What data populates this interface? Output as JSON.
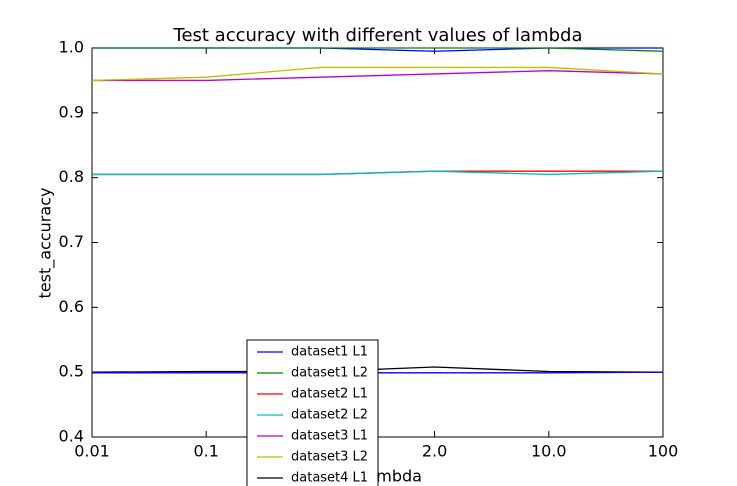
{
  "chart_data": {
    "type": "line",
    "title": "Test accuracy with different values of lambda",
    "x_label": "lambda",
    "y_label": "test_accuracy",
    "categories": [
      "0.01",
      "0.1",
      null,
      "2.0",
      "10.0",
      "100"
    ],
    "ylim": [
      0.4,
      1.0
    ],
    "yticks": [
      {
        "value": 0.4,
        "label": "0.4"
      },
      {
        "value": 0.5,
        "label": "0.5"
      },
      {
        "value": 0.6,
        "label": "0.6"
      },
      {
        "value": 0.7,
        "label": "0.7"
      },
      {
        "value": 0.8,
        "label": "0.8"
      },
      {
        "value": 0.9,
        "label": "0.9"
      },
      {
        "value": 1.0,
        "label": "1.0"
      }
    ],
    "series": [
      {
        "name": "dataset1 L1",
        "color": "#0000ff",
        "values": [
          1.0,
          1.0,
          1.0,
          0.995,
          1.0,
          1.0
        ]
      },
      {
        "name": "dataset1 L2",
        "color": "#008000",
        "values": [
          1.0,
          1.0,
          1.0,
          1.0,
          1.0,
          0.995
        ]
      },
      {
        "name": "dataset2 L1",
        "color": "#ff0000",
        "values": [
          0.805,
          0.805,
          0.805,
          0.81,
          0.81,
          0.81
        ]
      },
      {
        "name": "dataset2 L2",
        "color": "#00bfbf",
        "values": [
          0.805,
          0.805,
          0.805,
          0.81,
          0.805,
          0.81
        ]
      },
      {
        "name": "dataset3 L1",
        "color": "#bf00bf",
        "values": [
          0.95,
          0.95,
          0.955,
          0.96,
          0.965,
          0.96
        ]
      },
      {
        "name": "dataset3 L2",
        "color": "#bfbf00",
        "values": [
          0.95,
          0.955,
          0.97,
          0.97,
          0.97,
          0.96
        ]
      },
      {
        "name": "dataset4 L1",
        "color": "#000000",
        "values": [
          0.5,
          0.501,
          0.501,
          0.508,
          0.501,
          0.5
        ]
      },
      {
        "color": "#0000ff",
        "values": [
          0.499,
          0.499,
          0.499,
          0.499,
          0.499,
          0.5
        ]
      }
    ]
  }
}
